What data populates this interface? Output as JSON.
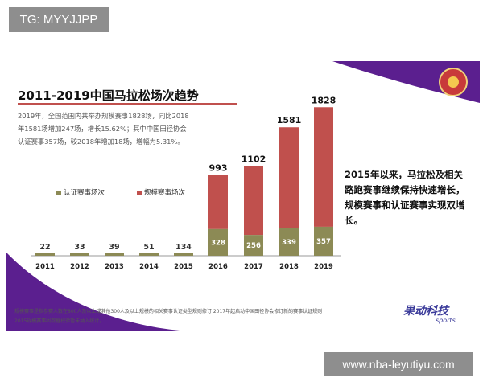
{
  "overlay": {
    "tag": "TG: MYYJJPP",
    "watermark": "www.nba-leyutiyu.com"
  },
  "slide": {
    "note_lines": [
      "2019年，全国范围内共举办规模赛事1828场，同比2018",
      "年1581场增加247场，增长15.62%；其中中国田径协会",
      "认证赛事357场，较2018年增加18场，增幅为5.31%。"
    ],
    "side_text": "2015年以来，马拉松及相关路跑赛事继续保持快速增长，规模赛事和认证赛事实现双增长。",
    "brand_name": "果动科技",
    "brand_sub": "sports",
    "footnotes": [
      "规模赛事是指参赛人数在800人及以上或其他300人及以上规模的相关赛事认证类型规则修订   2017年起启动中国田径协会修订新的赛事认证规则",
      "2015规模赛事因数据校验暂未纳入统计。"
    ],
    "colors": {
      "accent_purple": "#5b1f8f",
      "rule_red": "#c0504d",
      "brand_blue": "#3b3b9a"
    },
    "icons": [
      "association-emblem-icon"
    ]
  },
  "chart_data": {
    "type": "bar",
    "title": "2011-2019中国马拉松场次趋势",
    "categories": [
      "2011",
      "2012",
      "2013",
      "2014",
      "2015",
      "2016",
      "2017",
      "2018",
      "2019"
    ],
    "series": [
      {
        "name": "认证赛事场次",
        "color": "#8c8a55",
        "values": [
          null,
          null,
          null,
          null,
          null,
          328,
          256,
          339,
          357
        ]
      },
      {
        "name": "规模赛事场次",
        "color": "#c0504d",
        "values": [
          null,
          null,
          null,
          null,
          null,
          993,
          1102,
          1581,
          1828
        ]
      }
    ],
    "small_values": [
      22,
      33,
      39,
      51,
      134,
      null,
      null,
      null,
      null
    ],
    "small_color": "#8c8a55",
    "xlabel": "",
    "ylabel": "",
    "ylim": [
      0,
      1900
    ],
    "grid": false,
    "legend": "left"
  }
}
